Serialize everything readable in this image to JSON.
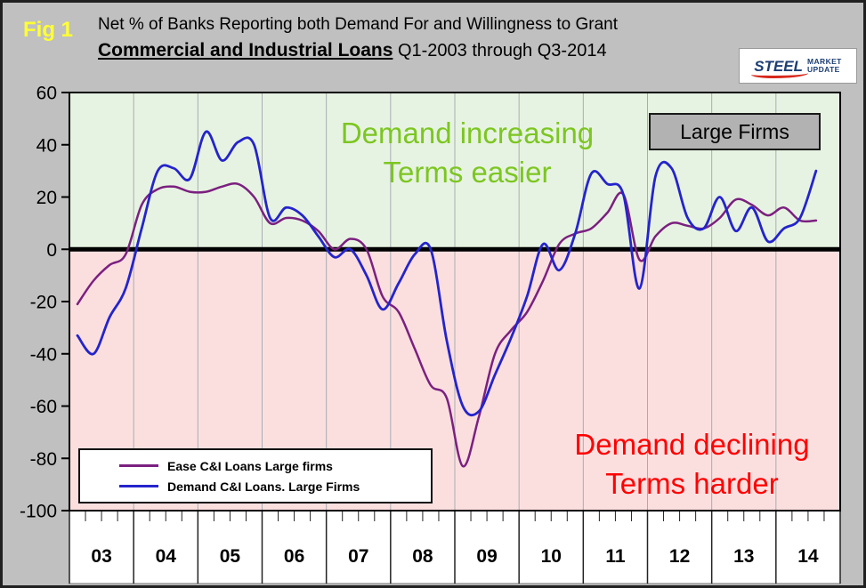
{
  "figure_label": "Fig 1",
  "header": {
    "title_line1": "Net % of Banks Reporting both Demand For and Willingness to Grant",
    "title_line2_bold": "Commercial and Industrial Loans",
    "title_line2_rest": " Q1-2003 through Q3-2014"
  },
  "logo": {
    "word1": "STEEL",
    "word2": "MARKET",
    "word3": "UPDATE"
  },
  "annotations": {
    "large_firms_label": "Large Firms",
    "increasing_line1": "Demand increasing",
    "increasing_line2": "Terms easier",
    "increasing_color": "#7cc621",
    "declining_line1": "Demand declining",
    "declining_line2": "Terms harder",
    "declining_color": "#ff0000"
  },
  "chart_data": {
    "type": "line",
    "title": "Net % of Banks Reporting both Demand For and Willingness to Grant Commercial and Industrial Loans, Q1-2003 through Q3-2014",
    "x_axis": {
      "unit": "quarter",
      "start": "Q1-2003",
      "end": "Q3-2014",
      "year_labels": [
        "03",
        "04",
        "05",
        "06",
        "07",
        "08",
        "09",
        "10",
        "11",
        "12",
        "13",
        "14"
      ]
    },
    "ylim": [
      -100,
      60
    ],
    "y_ticks": [
      60,
      40,
      20,
      0,
      -20,
      -40,
      -60,
      -80,
      -100
    ],
    "zones": {
      "above_zero_color": "#e7f3e2",
      "below_zero_color": "#fbdfdf"
    },
    "grid": "vertical-yearly",
    "legend_position": "bottom-left",
    "series": [
      {
        "name": "Ease C&I Loans Large firms",
        "color": "#7b2080",
        "values": [
          -21,
          -12,
          -6,
          -2,
          17,
          23,
          24,
          22,
          22,
          24,
          25,
          20,
          10,
          12,
          11,
          7,
          0,
          4,
          0,
          -18,
          -24,
          -38,
          -52,
          -57,
          -83,
          -64,
          -40,
          -31,
          -24,
          -12,
          2,
          6,
          8,
          14,
          21,
          -4,
          5,
          10,
          9,
          8,
          12,
          19,
          17,
          13,
          16,
          11,
          11
        ]
      },
      {
        "name": "Demand C&I Loans. Large Firms",
        "color": "#2424cc",
        "values": [
          -33,
          -40,
          -26,
          -15,
          8,
          30,
          31,
          27,
          45,
          34,
          41,
          40,
          12,
          16,
          13,
          5,
          -3,
          0,
          -10,
          -23,
          -13,
          -2,
          0,
          -35,
          -60,
          -62,
          -48,
          -34,
          -18,
          2,
          -8,
          6,
          29,
          25,
          21,
          -15,
          28,
          31,
          12,
          8,
          20,
          7,
          16,
          3,
          8,
          12,
          30
        ]
      }
    ]
  }
}
